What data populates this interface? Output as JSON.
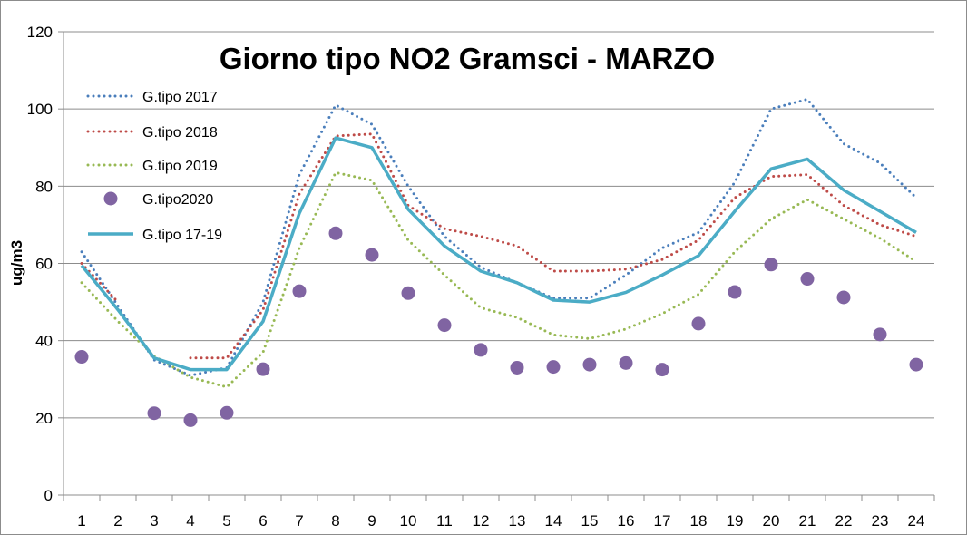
{
  "chart_data": {
    "type": "line",
    "title": "Giorno tipo NO2 Gramsci - MARZO",
    "xlabel": "",
    "ylabel": "ug/m3",
    "ylim": [
      0,
      120
    ],
    "yticks": [
      "0",
      "20",
      "40",
      "60",
      "80",
      "100",
      "120"
    ],
    "categories": [
      "1",
      "2",
      "3",
      "4",
      "5",
      "6",
      "7",
      "8",
      "9",
      "10",
      "11",
      "12",
      "13",
      "14",
      "15",
      "16",
      "17",
      "18",
      "19",
      "20",
      "21",
      "22",
      "23",
      "24"
    ],
    "grid": true,
    "legend_position": "top-left",
    "series": [
      {
        "name": "G.tipo 2017",
        "style": "dotted",
        "color": "#4a7ebb",
        "values": [
          63,
          49,
          35,
          31,
          33,
          50,
          83,
          101,
          96,
          80,
          67,
          59,
          55,
          51,
          51,
          57,
          64,
          68,
          81,
          100,
          102.5,
          91,
          86,
          77
        ]
      },
      {
        "name": "G.tipo 2018",
        "style": "dotted",
        "color": "#be4b48",
        "values": [
          60,
          50,
          null,
          35.5,
          35.5,
          48,
          78,
          93,
          93.5,
          75,
          69,
          67,
          64.5,
          58,
          58,
          58.5,
          61,
          66,
          77,
          82.5,
          83,
          75,
          70,
          67
        ]
      },
      {
        "name": "G.tipo 2019",
        "style": "dotted",
        "color": "#98b954",
        "values": [
          55,
          45,
          36,
          30.5,
          28,
          37,
          64,
          83.5,
          81.5,
          66,
          57,
          48.5,
          46,
          41.5,
          40.5,
          43,
          47,
          52,
          63,
          71.5,
          76.5,
          71.5,
          66.5,
          60.5
        ]
      },
      {
        "name": "G.tipo2020",
        "style": "markers",
        "color": "#8064a2",
        "values": [
          35.8,
          null,
          21.2,
          19.4,
          21.3,
          32.6,
          52.8,
          67.8,
          62.2,
          52.3,
          44,
          37.6,
          33,
          33.2,
          33.8,
          34.2,
          32.5,
          44.4,
          52.6,
          59.7,
          56,
          51.2,
          41.6,
          33.8
        ]
      },
      {
        "name": "G.tipo 17-19",
        "style": "solid",
        "color": "#4bacc6",
        "values": [
          59.5,
          48,
          35.5,
          32.5,
          32.5,
          45,
          73,
          92.5,
          90,
          74,
          64.5,
          58,
          55,
          50.5,
          50,
          52.5,
          57,
          62,
          73.5,
          84.5,
          87,
          79,
          73.5,
          68
        ]
      }
    ]
  }
}
